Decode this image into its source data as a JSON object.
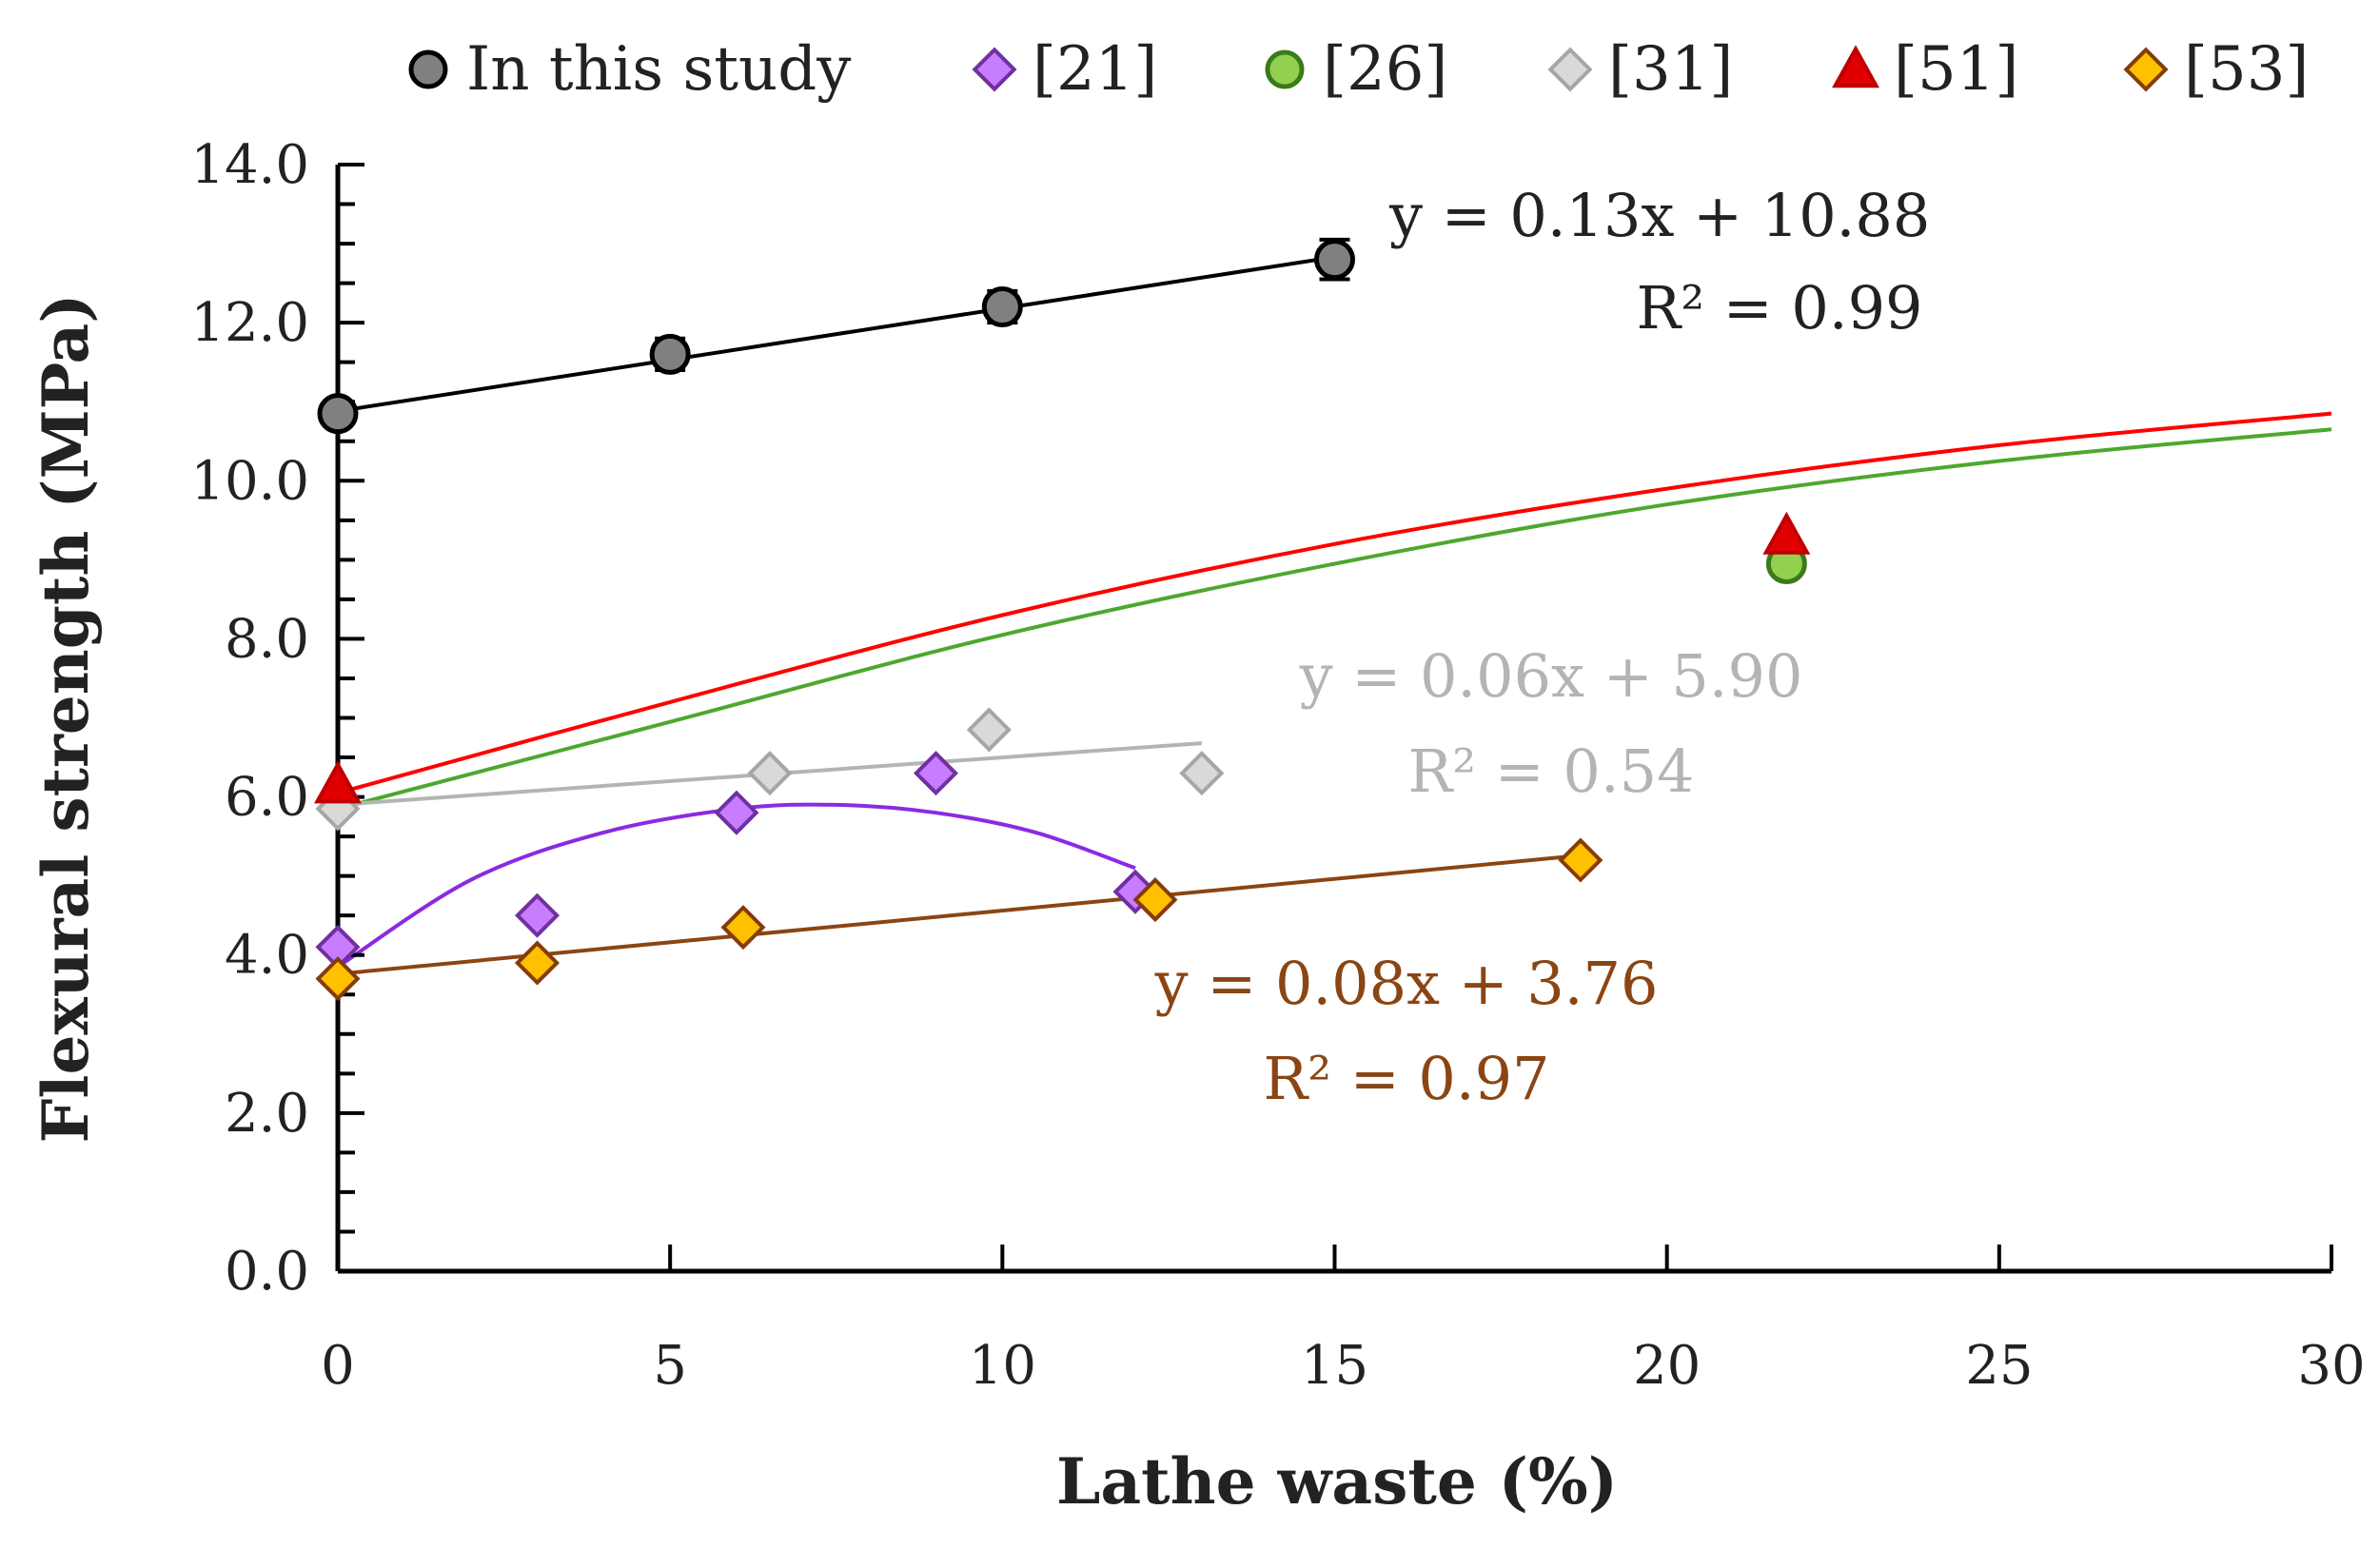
{
  "chart_data": {
    "type": "scatter",
    "xlabel": "Lathe waste (%)",
    "ylabel": "Flexural strength (MPa)",
    "xlim": [
      0,
      30
    ],
    "ylim": [
      0,
      14
    ],
    "xticks": [
      "0",
      "5",
      "10",
      "15",
      "20",
      "25",
      "30"
    ],
    "yticks": [
      "0.0",
      "2.0",
      "4.0",
      "6.0",
      "8.0",
      "10.0",
      "12.0",
      "14.0"
    ],
    "grid": false,
    "legend_position": "top",
    "series": [
      {
        "name": "In this study",
        "marker": "circle",
        "fill": "#808080",
        "stroke": "#000000",
        "x": [
          0,
          5,
          10,
          15
        ],
        "y": [
          10.85,
          11.6,
          12.2,
          12.8
        ],
        "error": [
          0.15,
          0.2,
          0.2,
          0.25
        ],
        "trend": {
          "kind": "linear",
          "x": [
            0,
            15
          ],
          "y": [
            10.88,
            12.83
          ],
          "color": "#000000"
        }
      },
      {
        "name": "[21]",
        "marker": "diamond",
        "fill": "#c77dff",
        "stroke": "#7030a0",
        "x": [
          0,
          3,
          6,
          9,
          12
        ],
        "y": [
          4.1,
          4.5,
          5.8,
          6.3,
          4.8
        ],
        "trend": {
          "kind": "polynomial",
          "x": [
            0,
            2,
            4,
            6,
            7.5,
            9,
            10.5,
            12
          ],
          "y": [
            3.85,
            4.95,
            5.55,
            5.85,
            5.9,
            5.8,
            5.55,
            5.1
          ],
          "color": "#8a2be2"
        }
      },
      {
        "name": "[26]",
        "marker": "circle",
        "fill": "#92d050",
        "stroke": "#3a7a1a",
        "x": [
          21.8
        ],
        "y": [
          8.95
        ],
        "trend": {
          "kind": "curve",
          "x": [
            0,
            5,
            10,
            15,
            20,
            25,
            30
          ],
          "y": [
            5.85,
            6.95,
            8.05,
            8.95,
            9.7,
            10.25,
            10.65
          ],
          "color": "#4ea72e"
        }
      },
      {
        "name": "[31]",
        "marker": "diamond",
        "fill": "#d9d9d9",
        "stroke": "#a6a6a6",
        "x": [
          0,
          6.5,
          9.8,
          13
        ],
        "y": [
          5.85,
          6.3,
          6.85,
          6.3
        ],
        "trend": {
          "kind": "linear",
          "x": [
            0,
            13
          ],
          "y": [
            5.9,
            6.68
          ],
          "color": "#b4b4b4"
        }
      },
      {
        "name": "[51]",
        "marker": "triangle",
        "fill": "#e00000",
        "stroke": "#c00000",
        "x": [
          0,
          21.8
        ],
        "y": [
          6.15,
          9.3
        ],
        "trend": {
          "kind": "curve",
          "x": [
            0,
            5,
            10,
            15,
            20,
            25,
            30
          ],
          "y": [
            6.05,
            7.2,
            8.3,
            9.2,
            9.9,
            10.45,
            10.85
          ],
          "color": "#ff0000"
        }
      },
      {
        "name": "[53]",
        "marker": "diamond",
        "fill": "#ffc000",
        "stroke": "#843c0c",
        "x": [
          0,
          3,
          6.1,
          12.3,
          18.7
        ],
        "y": [
          3.7,
          3.9,
          4.35,
          4.7,
          5.2
        ],
        "trend": {
          "kind": "linear",
          "x": [
            0,
            18.7
          ],
          "y": [
            3.76,
            5.26
          ],
          "color": "#8b4513"
        }
      }
    ],
    "annotations": [
      {
        "id": "black",
        "color": "#222222",
        "lines": [
          "y = 0.13x + 10.88",
          "R² = 0.99"
        ]
      },
      {
        "id": "gray",
        "color": "#b4b4b4",
        "lines": [
          "y = 0.06x + 5.90",
          "R² = 0.54"
        ]
      },
      {
        "id": "brown",
        "color": "#8b4513",
        "lines": [
          "y = 0.08x + 3.76",
          "R² = 0.97"
        ]
      }
    ]
  }
}
